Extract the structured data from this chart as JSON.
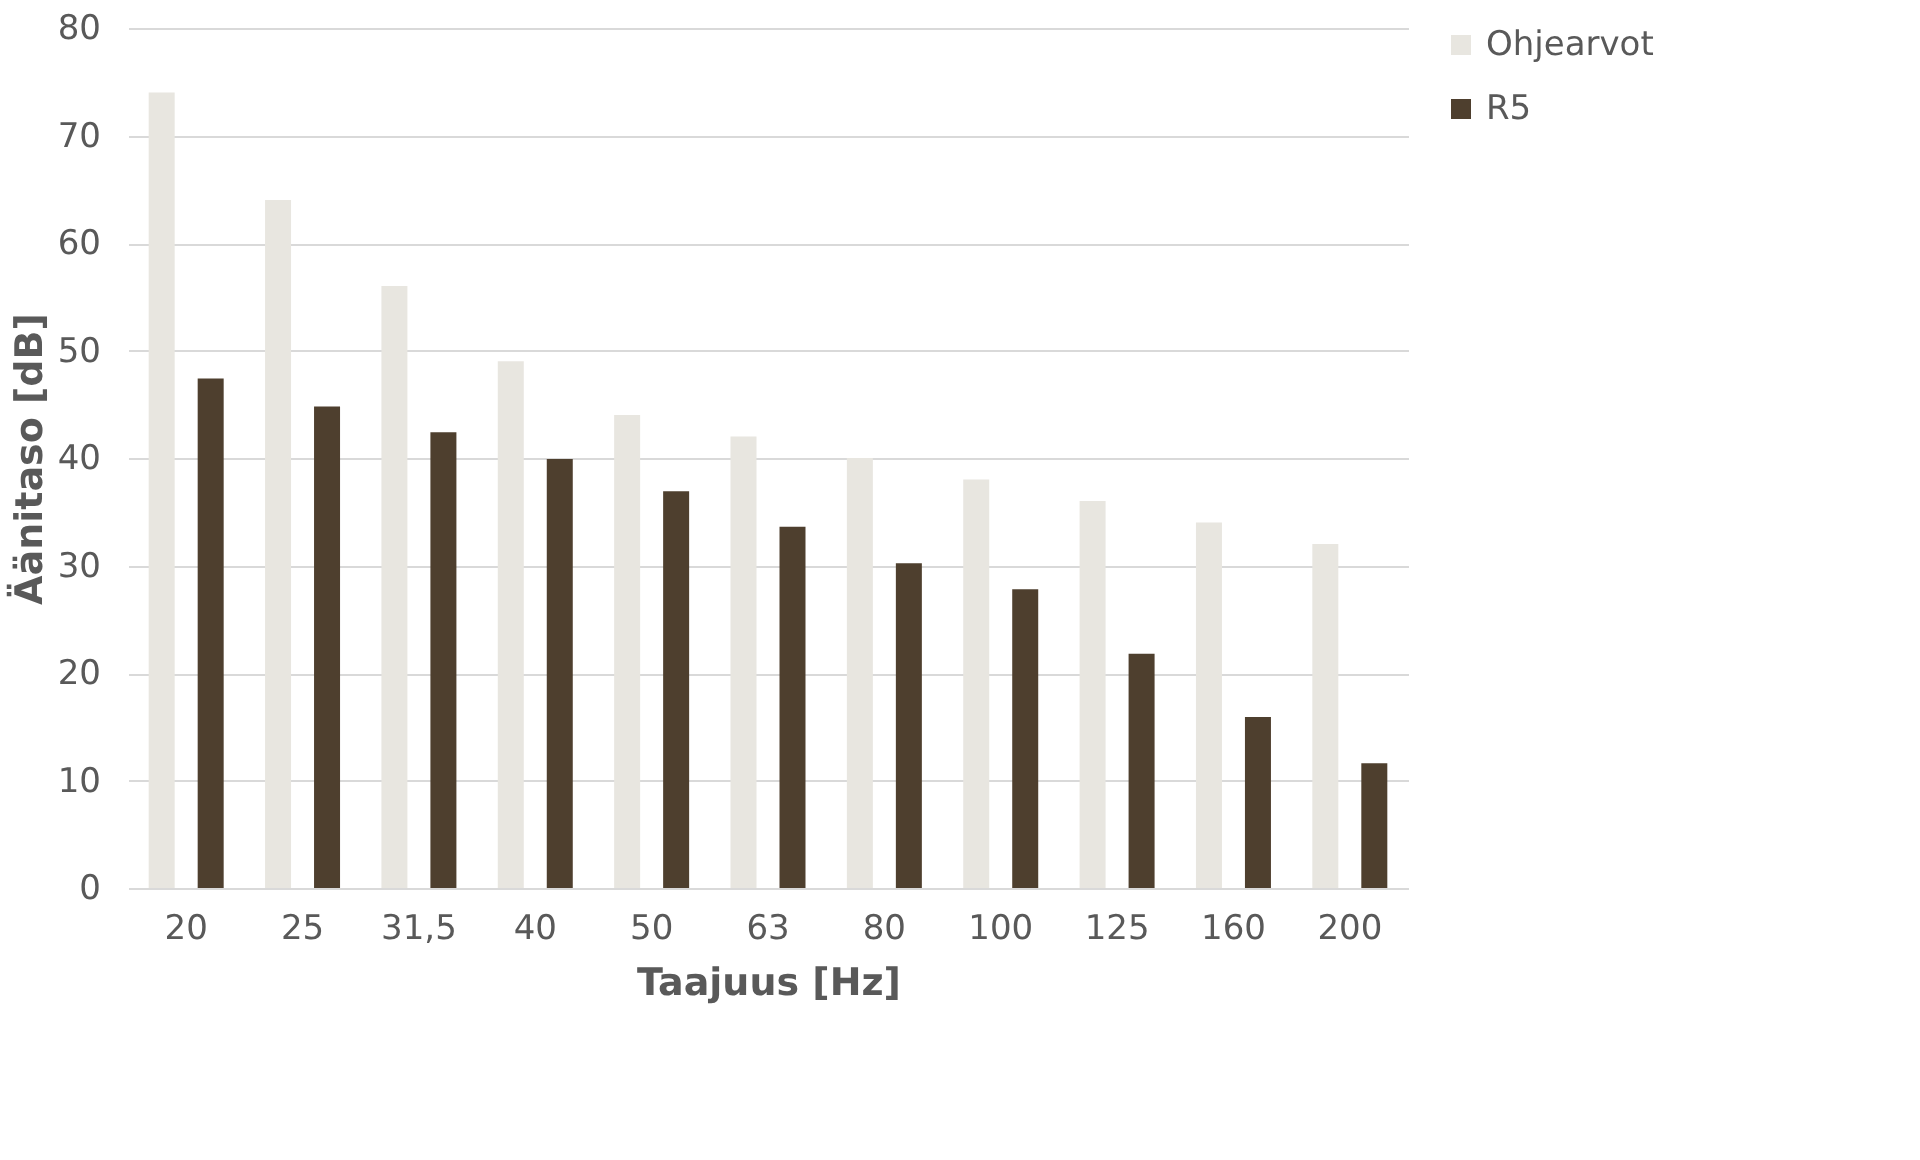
{
  "chart_data": {
    "type": "bar",
    "xlabel": "Taajuus [Hz]",
    "ylabel": "Äänitaso [dB]",
    "categories": [
      "20",
      "25",
      "31,5",
      "40",
      "50",
      "63",
      "80",
      "100",
      "125",
      "160",
      "200"
    ],
    "series": [
      {
        "name": "Ohjearvot",
        "color": "#e8e6e0",
        "values": [
          74,
          64,
          56,
          49,
          44,
          42,
          40,
          38,
          36,
          34,
          32
        ]
      },
      {
        "name": "R5",
        "color": "#4e3f2e",
        "values": [
          47.4,
          44.8,
          42.4,
          39.9,
          36.9,
          33.6,
          30.2,
          27.8,
          21.8,
          15.9,
          11.6
        ]
      }
    ],
    "ylim": [
      0,
      80
    ],
    "yticks": [
      0,
      10,
      20,
      30,
      40,
      50,
      60,
      70,
      80
    ],
    "grid": "y",
    "legend": "right"
  }
}
